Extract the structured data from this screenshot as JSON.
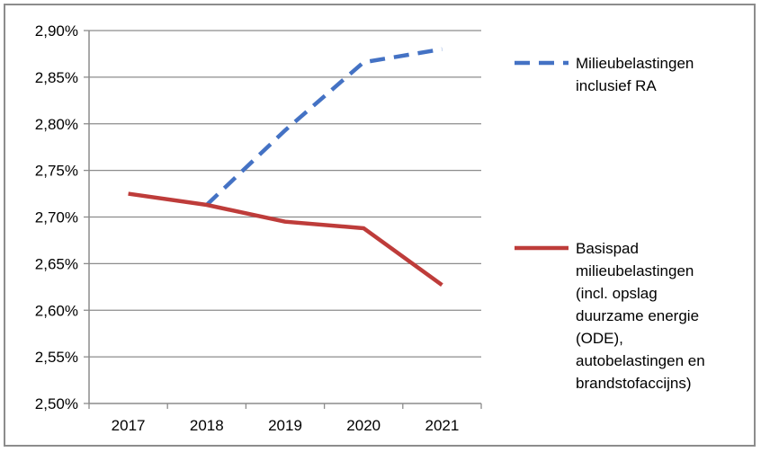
{
  "chart_data": {
    "type": "line",
    "title": "",
    "xlabel": "",
    "ylabel": "",
    "categories": [
      "2017",
      "2018",
      "2019",
      "2020",
      "2021"
    ],
    "ylim": [
      0.025,
      0.029
    ],
    "yticks": [
      "2,90%",
      "2,85%",
      "2,80%",
      "2,75%",
      "2,70%",
      "2,65%",
      "2,60%",
      "2,55%",
      "2,50%"
    ],
    "ytick_values": [
      0.029,
      0.0285,
      0.028,
      0.0275,
      0.027,
      0.0265,
      0.026,
      0.0255,
      0.025
    ],
    "grid": true,
    "legend_position": "right",
    "series": [
      {
        "name": "Milieubelastingen inclusief RA",
        "name_lines": [
          "Milieubelastingen",
          "inclusief RA"
        ],
        "color": "#4472c4",
        "style": "dashed",
        "values": [
          null,
          0.02713,
          0.02793,
          0.02866,
          0.0288
        ]
      },
      {
        "name": "Basispad milieubelastingen (incl. opslag duurzame energie (ODE), autobelastingen en brandstofaccijns)",
        "name_lines": [
          "Basispad",
          "milieubelastingen",
          "(incl. opslag",
          "duurzame energie",
          "(ODE),",
          "autobelastingen en",
          "brandstofaccijns)"
        ],
        "color": "#be3c3a",
        "style": "solid",
        "values": [
          0.02725,
          0.02713,
          0.02695,
          0.02688,
          0.02627
        ]
      }
    ]
  }
}
